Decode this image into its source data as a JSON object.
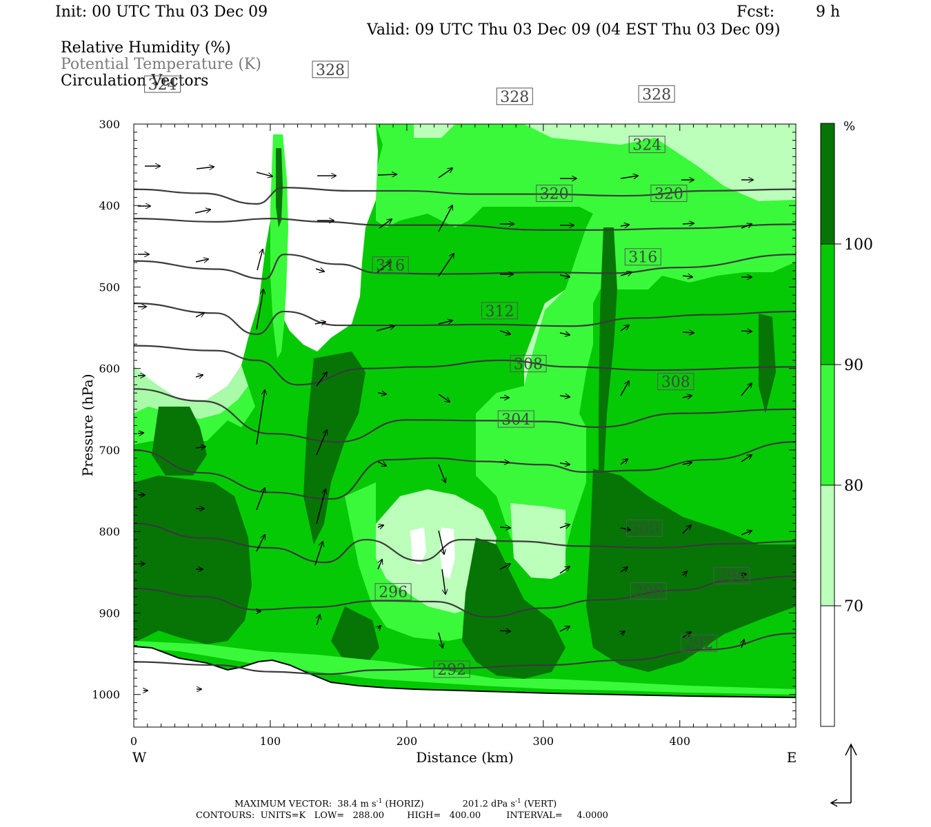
{
  "header": {
    "init": "Init: 00 UTC Thu 03 Dec 09",
    "fcst_label": "Fcst:",
    "fcst_value": "9 h",
    "valid": "Valid: 09 UTC Thu 03 Dec 09 (04 EST Thu 03 Dec 09)",
    "field1": "Relative Humidity (%)",
    "field2": "Potential Temperature (K)",
    "field3": "Circulation Vectors"
  },
  "colors": {
    "c70": "#ffffff",
    "c80": "#bbffbb",
    "c90": "#3af93a",
    "c100": "#05c905",
    "c110": "#067506",
    "theta": "#3a3a3a",
    "vector": "#000000"
  },
  "chart_data": {
    "type": "cross-section",
    "xlabel": "Distance (km)",
    "ylabel": "Pressure (hPa)",
    "xlim": [
      0,
      485
    ],
    "ylim": [
      1040,
      300
    ],
    "x_ticks": [
      0,
      100,
      200,
      300,
      400
    ],
    "y_ticks": [
      300,
      400,
      500,
      600,
      700,
      800,
      900,
      1000
    ],
    "x_end_labels": {
      "left": "W",
      "right": "E"
    },
    "legend": {
      "unit": "%",
      "levels": [
        "100",
        "90",
        "80",
        "70"
      ],
      "colors": [
        "#067506",
        "#05c905",
        "#3af93a",
        "#bbffbb",
        "#ffffff"
      ]
    },
    "theta_contours": [
      {
        "value": 292,
        "label": "292",
        "points": [
          [
            0,
            960
          ],
          [
            60,
            964
          ],
          [
            100,
            972
          ],
          [
            140,
            975
          ],
          [
            180,
            970
          ],
          [
            230,
            968
          ],
          [
            300,
            964
          ],
          [
            360,
            958
          ],
          [
            420,
            945
          ],
          [
            485,
            925
          ]
        ],
        "label_at": [
          [
            233,
            969
          ],
          [
            414,
            937
          ]
        ]
      },
      {
        "value": 296,
        "label": "296",
        "points": [
          [
            0,
            870
          ],
          [
            50,
            880
          ],
          [
            90,
            896
          ],
          [
            130,
            893
          ],
          [
            180,
            885
          ],
          [
            220,
            886
          ],
          [
            260,
            905
          ],
          [
            300,
            894
          ],
          [
            340,
            884
          ],
          [
            400,
            872
          ],
          [
            440,
            860
          ],
          [
            485,
            855
          ]
        ],
        "label_at": [
          [
            190,
            874
          ],
          [
            377,
            873
          ],
          [
            438,
            854
          ]
        ]
      },
      {
        "value": 300,
        "label": "300",
        "points": [
          [
            0,
            790
          ],
          [
            50,
            808
          ],
          [
            100,
            820
          ],
          [
            140,
            838
          ],
          [
            170,
            810
          ],
          [
            210,
            836
          ],
          [
            240,
            810
          ],
          [
            280,
            812
          ],
          [
            330,
            818
          ],
          [
            380,
            820
          ],
          [
            440,
            815
          ],
          [
            485,
            812
          ]
        ],
        "label_at": [
          [
            374,
            796
          ]
        ]
      },
      {
        "value": 304,
        "label": "304",
        "points": [
          [
            0,
            700
          ],
          [
            50,
            728
          ],
          [
            100,
            752
          ],
          [
            145,
            760
          ],
          [
            185,
            712
          ],
          [
            220,
            710
          ],
          [
            255,
            714
          ],
          [
            300,
            718
          ],
          [
            330,
            727
          ],
          [
            370,
            725
          ],
          [
            420,
            712
          ],
          [
            485,
            690
          ]
        ],
        "label_at": [
          [
            280,
            662
          ]
        ]
      },
      {
        "value": 308,
        "label": "308",
        "points": [
          [
            0,
            625
          ],
          [
            50,
            640
          ],
          [
            100,
            680
          ],
          [
            150,
            690
          ],
          [
            200,
            663
          ],
          [
            260,
            664
          ],
          [
            300,
            665
          ],
          [
            340,
            672
          ],
          [
            400,
            655
          ],
          [
            485,
            650
          ]
        ],
        "label_at": [
          [
            289,
            594
          ],
          [
            397,
            616
          ]
        ]
      },
      {
        "value": 312,
        "label": "312",
        "points": [
          [
            0,
            572
          ],
          [
            60,
            578
          ],
          [
            90,
            590
          ],
          [
            120,
            620
          ],
          [
            170,
            600
          ],
          [
            210,
            598
          ],
          [
            270,
            590
          ],
          [
            320,
            598
          ],
          [
            380,
            602
          ],
          [
            485,
            598
          ]
        ],
        "label_at": [
          [
            268,
            529
          ]
        ]
      },
      {
        "value": 316,
        "label": "316",
        "points": [
          [
            0,
            520
          ],
          [
            60,
            532
          ],
          [
            90,
            558
          ],
          [
            110,
            530
          ],
          [
            150,
            547
          ],
          [
            200,
            547
          ],
          [
            260,
            546
          ],
          [
            320,
            548
          ],
          [
            370,
            538
          ],
          [
            420,
            534
          ],
          [
            485,
            530
          ]
        ],
        "label_at": [
          [
            188,
            473
          ],
          [
            373,
            463
          ]
        ]
      },
      {
        "value": 320,
        "label": "320",
        "points": [
          [
            0,
            468
          ],
          [
            60,
            478
          ],
          [
            96,
            490
          ],
          [
            110,
            460
          ],
          [
            150,
            472
          ],
          [
            180,
            483
          ],
          [
            230,
            484
          ],
          [
            300,
            482
          ],
          [
            350,
            483
          ],
          [
            400,
            476
          ],
          [
            485,
            460
          ]
        ],
        "label_at": [
          [
            308,
            385
          ],
          [
            392,
            385
          ]
        ]
      },
      {
        "value": 324,
        "label": "324",
        "points": [
          [
            0,
            416
          ],
          [
            60,
            420
          ],
          [
            100,
            416
          ],
          [
            140,
            420
          ],
          [
            180,
            424
          ],
          [
            230,
            424
          ],
          [
            300,
            430
          ],
          [
            340,
            430
          ],
          [
            400,
            428
          ],
          [
            485,
            423
          ]
        ],
        "label_at": [
          [
            21,
            251
          ],
          [
            376,
            325
          ]
        ]
      },
      {
        "value": 328,
        "label": "328",
        "points": [
          [
            0,
            380
          ],
          [
            50,
            385
          ],
          [
            90,
            398
          ],
          [
            110,
            378
          ],
          [
            160,
            382
          ],
          [
            200,
            382
          ],
          [
            250,
            386
          ],
          [
            300,
            386
          ],
          [
            360,
            388
          ],
          [
            420,
            382
          ],
          [
            485,
            380
          ]
        ],
        "label_at": [
          [
            144,
            233
          ],
          [
            279,
            266
          ],
          [
            383,
            263
          ]
        ]
      }
    ],
    "max_vector": {
      "horiz": "38.4 m s⁻¹ (HORIZ)",
      "vert": "201.2 dPa s⁻¹ (VERT)"
    },
    "contour_info": "CONTOURS:  UNITS=K   LOW=   288.00        HIGH=   400.00         INTERVAL=     4.0000"
  },
  "footer": {
    "max_vector_label": "MAXIMUM VECTOR:  38.4 m s",
    "max_vector_horiz_tail": " (HORIZ)",
    "max_vector_vert": "201.2 dPa s",
    "max_vector_vert_tail": " (VERT)",
    "contours": "CONTOURS:  UNITS=K   LOW=   288.00        HIGH=   400.00         INTERVAL=     4.0000"
  }
}
